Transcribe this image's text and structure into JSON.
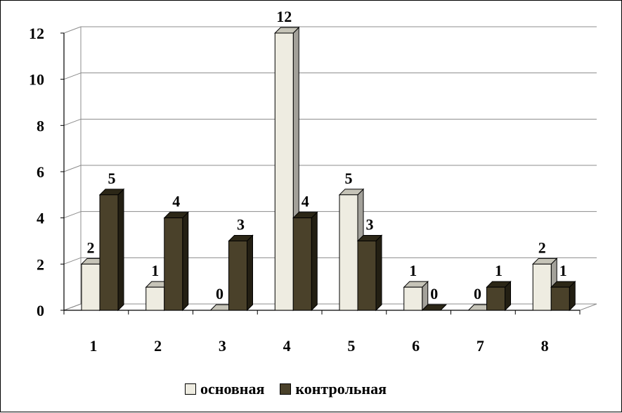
{
  "chart_data": {
    "type": "bar",
    "categories": [
      "1",
      "2",
      "3",
      "4",
      "5",
      "6",
      "7",
      "8"
    ],
    "series": [
      {
        "name": "основная",
        "values": [
          2,
          1,
          0,
          12,
          5,
          1,
          0,
          2
        ],
        "color": "#EEECE1"
      },
      {
        "name": "контрольная",
        "values": [
          5,
          4,
          3,
          4,
          3,
          0,
          1,
          1
        ],
        "color": "#4A412A"
      }
    ],
    "y_ticks": [
      "0",
      "2",
      "4",
      "6",
      "8",
      "10",
      "12"
    ],
    "ylim": [
      0,
      12
    ],
    "grid": true,
    "legend_position": "bottom",
    "style": "3d-clustered-column"
  }
}
